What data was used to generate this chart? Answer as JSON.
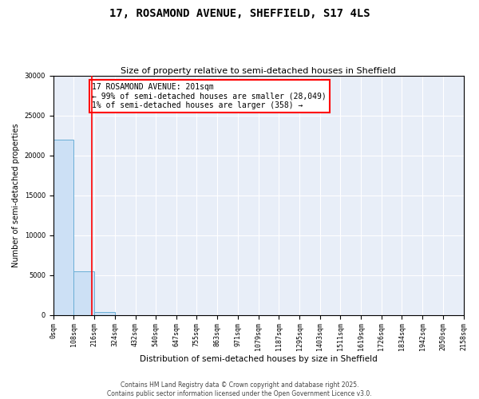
{
  "title": "17, ROSAMOND AVENUE, SHEFFIELD, S17 4LS",
  "subtitle": "Size of property relative to semi-detached houses in Sheffield",
  "xlabel": "Distribution of semi-detached houses by size in Sheffield",
  "ylabel": "Number of semi-detached properties",
  "bin_edges": [
    0,
    108,
    216,
    324,
    432,
    540,
    647,
    755,
    863,
    971,
    1079,
    1187,
    1295,
    1403,
    1511,
    1619,
    1726,
    1834,
    1942,
    2050,
    2158
  ],
  "bin_counts": [
    22000,
    5500,
    400,
    0,
    0,
    0,
    0,
    0,
    0,
    0,
    0,
    0,
    0,
    0,
    0,
    0,
    0,
    0,
    0,
    0
  ],
  "bar_color": "#cce0f5",
  "bar_edgecolor": "#6aafd6",
  "property_size": 201,
  "vline_color": "red",
  "annotation_title": "17 ROSAMOND AVENUE: 201sqm",
  "annotation_line1": "← 99% of semi-detached houses are smaller (28,049)",
  "annotation_line2": "1% of semi-detached houses are larger (358) →",
  "annotation_box_color": "red",
  "ylim": [
    0,
    30000
  ],
  "yticks": [
    0,
    5000,
    10000,
    15000,
    20000,
    25000,
    30000
  ],
  "xtick_labels": [
    "0sqm",
    "108sqm",
    "216sqm",
    "324sqm",
    "432sqm",
    "540sqm",
    "647sqm",
    "755sqm",
    "863sqm",
    "971sqm",
    "1079sqm",
    "1187sqm",
    "1295sqm",
    "1403sqm",
    "1511sqm",
    "1619sqm",
    "1726sqm",
    "1834sqm",
    "1942sqm",
    "2050sqm",
    "2158sqm"
  ],
  "footer1": "Contains HM Land Registry data © Crown copyright and database right 2025.",
  "footer2": "Contains public sector information licensed under the Open Government Licence v3.0.",
  "background_color": "#e8eef8",
  "grid_color": "white",
  "title_fontsize": 10,
  "subtitle_fontsize": 8,
  "annotation_fontsize": 7,
  "tick_fontsize": 6,
  "ylabel_fontsize": 7,
  "xlabel_fontsize": 7.5,
  "footer_fontsize": 5.5
}
